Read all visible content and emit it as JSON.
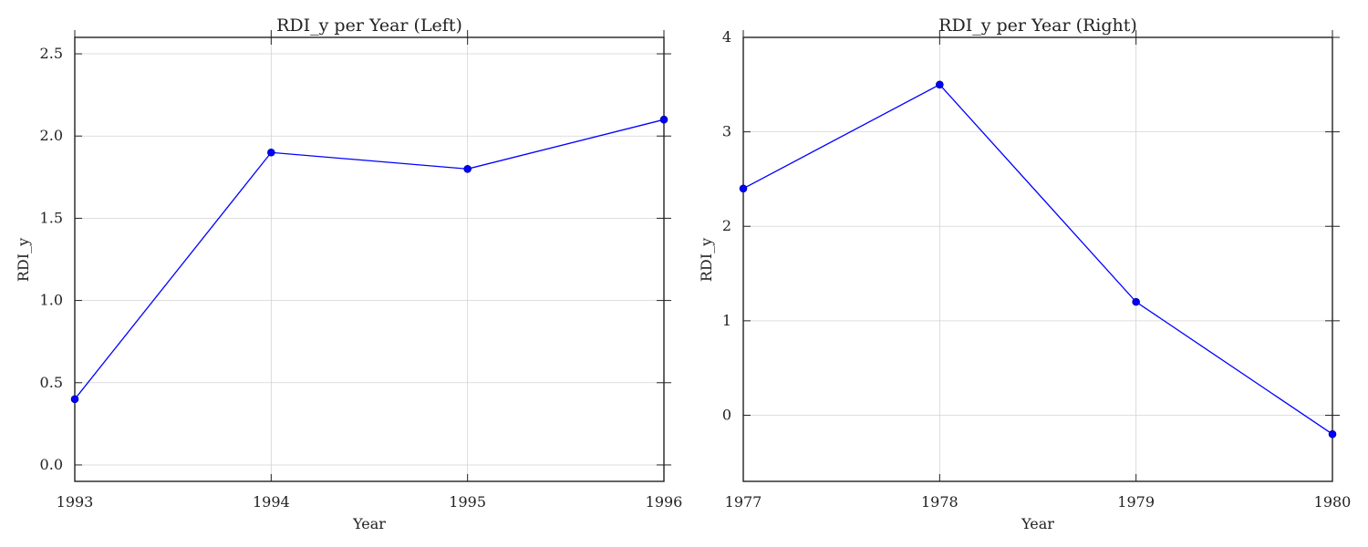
{
  "chart_data": [
    {
      "type": "line",
      "title": "RDI_y per Year (Left)",
      "xlabel": "Year",
      "ylabel": "RDI_y",
      "x": [
        1993,
        1994,
        1995,
        1996
      ],
      "series": [
        {
          "values": [
            0.4,
            1.9,
            1.8,
            2.1
          ],
          "color": "#0000ff"
        }
      ],
      "xlim": [
        1993,
        1996
      ],
      "ylim": [
        -0.1,
        2.6
      ],
      "xticks": [
        1993,
        1994,
        1995,
        1996
      ],
      "xtick_labels": [
        "1993",
        "1994",
        "1995",
        "1996"
      ],
      "yticks": [
        0.0,
        0.5,
        1.0,
        1.5,
        2.0,
        2.5
      ],
      "ytick_labels": [
        "0.0",
        "0.5",
        "1.0",
        "1.5",
        "2.0",
        "2.5"
      ],
      "grid": true,
      "marker": "circle"
    },
    {
      "type": "line",
      "title": "RDI_y per Year (Right)",
      "xlabel": "Year",
      "ylabel": "RDI_y",
      "x": [
        1977,
        1978,
        1979,
        1980
      ],
      "series": [
        {
          "values": [
            2.4,
            3.5,
            1.2,
            -0.2
          ],
          "color": "#0000ff"
        }
      ],
      "xlim": [
        1977,
        1980
      ],
      "ylim": [
        -0.7,
        4.0
      ],
      "xticks": [
        1977,
        1978,
        1979,
        1980
      ],
      "xtick_labels": [
        "1977",
        "1978",
        "1979",
        "1980"
      ],
      "yticks": [
        0,
        1,
        2,
        3,
        4
      ],
      "ytick_labels": [
        "0",
        "1",
        "2",
        "3",
        "4"
      ],
      "grid": true,
      "marker": "circle"
    }
  ],
  "colors": {
    "line": "#0000ff",
    "grid": "#d3d3d3",
    "frame": "#222222"
  }
}
